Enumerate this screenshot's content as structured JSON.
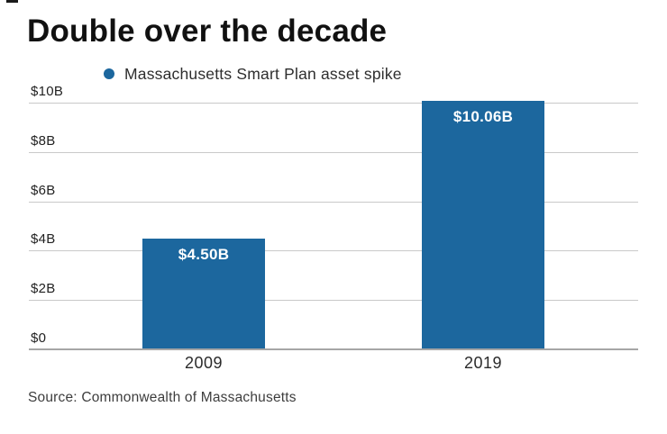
{
  "title": "Double over the decade",
  "legend": {
    "label": "Massachusetts Smart Plan asset spike"
  },
  "source": "Source: Commonwealth of Massachusetts",
  "colors": {
    "bar": "#1c679e",
    "gridline": "#c9c9c9",
    "axis_line": "#a6a6a6",
    "value_label": "#ffffff"
  },
  "chart_data": {
    "type": "bar",
    "title": "Double over the decade",
    "series_name": "Massachusetts Smart Plan asset spike",
    "categories": [
      "2009",
      "2019"
    ],
    "values": [
      4.5,
      10.06
    ],
    "data_labels": [
      "$4.50B",
      "$10.06B"
    ],
    "unit": "billions USD",
    "yticks": [
      0,
      2,
      4,
      6,
      8,
      10
    ],
    "ytick_labels": [
      "$0",
      "$2B",
      "$4B",
      "$6B",
      "$8B",
      "$10B"
    ],
    "ylim": [
      0,
      10
    ],
    "grid": true,
    "legend_position": "top",
    "source": "Source: Commonwealth of Massachusetts"
  }
}
